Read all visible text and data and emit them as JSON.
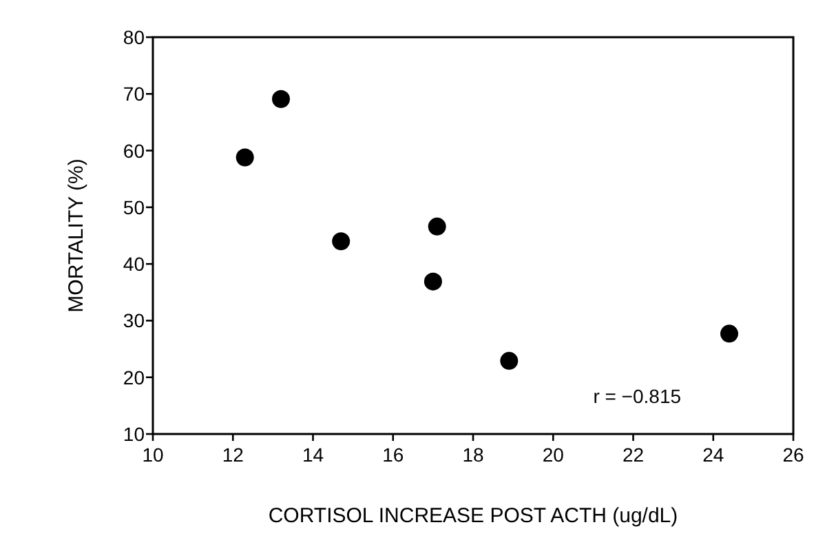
{
  "chart_data": {
    "type": "scatter",
    "xlabel": "CORTISOL INCREASE POST ACTH (ug/dL)",
    "ylabel": "MORTALITY (%)",
    "x": [
      12.3,
      13.2,
      14.7,
      17.1,
      17.0,
      18.9,
      24.4
    ],
    "series": [
      {
        "color": "#000000",
        "values": [
          58.8,
          69.1,
          44.0,
          46.6,
          36.9,
          22.9,
          27.7
        ]
      }
    ],
    "xlim": [
      10,
      26
    ],
    "xticks": [
      10,
      12,
      14,
      16,
      18,
      20,
      22,
      24,
      26
    ],
    "ylim": [
      10,
      80
    ],
    "yticks": [
      10,
      20,
      30,
      40,
      50,
      60,
      70,
      80
    ],
    "marker": "circle",
    "grid": false,
    "annotations": [
      "r = −0.815"
    ]
  }
}
